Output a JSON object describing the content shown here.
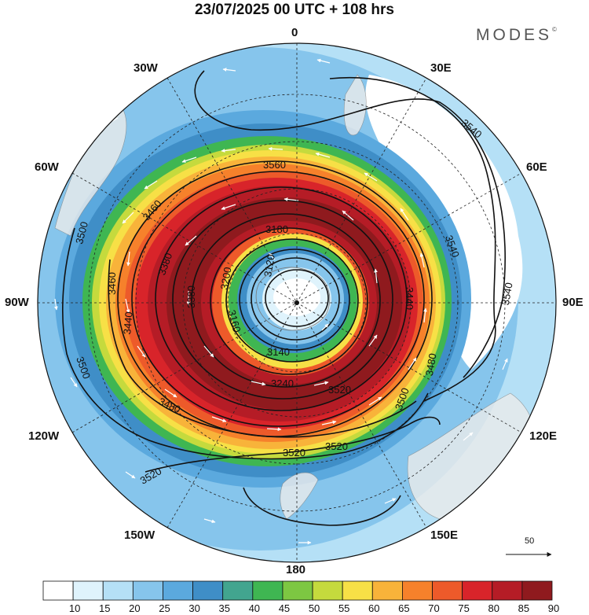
{
  "header": {
    "title": "23/07/2025  00 UTC  + 108 hrs",
    "brand": "MODES",
    "brand_mark": "©"
  },
  "map": {
    "projection": "south-polar-stereographic",
    "longitude_labels": {
      "0": "0",
      "30E": "30E",
      "60E": "60E",
      "90E": "90E",
      "120E": "120E",
      "150E": "150E",
      "180": "180",
      "150W": "150W",
      "120W": "120W",
      "90W": "90W",
      "60W": "60W",
      "30W": "30W"
    },
    "contour_labels": [
      "3560",
      "3540",
      "3540",
      "3540",
      "3520",
      "3520",
      "3520",
      "3500",
      "3500",
      "3500",
      "3480",
      "3480",
      "3460",
      "3460",
      "3440",
      "3440",
      "3380",
      "3200",
      "3180",
      "3160",
      "3140",
      "3120",
      "3240",
      "3520",
      "3380"
    ],
    "wind_speed_field": "jet max over southern ocean",
    "reference_vector": "50",
    "colors": {
      "ocean_land": "#ececec",
      "contour": "#111111",
      "vector": "#ffffff"
    }
  },
  "colorbar": {
    "labels": [
      "10",
      "15",
      "20",
      "25",
      "30",
      "35",
      "40",
      "45",
      "50",
      "55",
      "60",
      "65",
      "70",
      "75",
      "80",
      "85",
      "90"
    ],
    "colors": [
      "#ffffff",
      "#dff3fc",
      "#b5e0f6",
      "#86c5ec",
      "#5ba9de",
      "#3f8ec7",
      "#42a58f",
      "#3fb652",
      "#7dc742",
      "#c5da3d",
      "#f7e046",
      "#f8b33a",
      "#f6812b",
      "#ed5a2a",
      "#d8242a",
      "#b51c26",
      "#8f1a1e"
    ]
  }
}
